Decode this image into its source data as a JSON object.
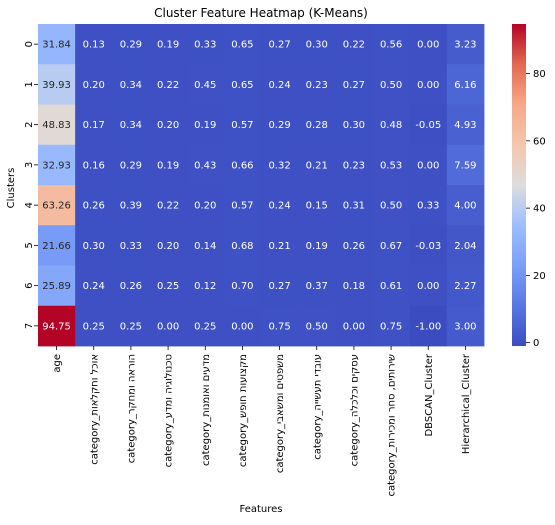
{
  "chart_data": {
    "type": "heatmap",
    "title": "Cluster Feature Heatmap (K-Means)",
    "xlabel": "Features",
    "ylabel": "Clusters",
    "x_categories": [
      "age",
      "category_אוכל וחקלאות",
      "category_הוראה ומחקר",
      "category_טכנולוגיה ומדע",
      "category_מדעים ואומנות",
      "category_מקצועות חופש",
      "category_משפטים ומשאבי",
      "category_עובדי תעשייה",
      "category_עסקים וכלכלה",
      "category_שירותים, סחר ומכירות",
      "DBSCAN_Cluster",
      "Hierarchical_Cluster"
    ],
    "y_categories": [
      "0",
      "1",
      "2",
      "3",
      "4",
      "5",
      "6",
      "7"
    ],
    "values": [
      [
        31.84,
        0.13,
        0.29,
        0.19,
        0.33,
        0.65,
        0.27,
        0.3,
        0.22,
        0.56,
        0.0,
        3.23
      ],
      [
        39.93,
        0.2,
        0.34,
        0.22,
        0.45,
        0.65,
        0.24,
        0.23,
        0.27,
        0.5,
        0.0,
        6.16
      ],
      [
        48.83,
        0.17,
        0.34,
        0.2,
        0.19,
        0.57,
        0.29,
        0.28,
        0.3,
        0.48,
        -0.05,
        4.93
      ],
      [
        32.93,
        0.16,
        0.29,
        0.19,
        0.43,
        0.66,
        0.32,
        0.21,
        0.23,
        0.53,
        0.0,
        7.59
      ],
      [
        63.26,
        0.26,
        0.39,
        0.22,
        0.2,
        0.57,
        0.24,
        0.15,
        0.31,
        0.5,
        0.33,
        4.0
      ],
      [
        21.66,
        0.3,
        0.33,
        0.2,
        0.14,
        0.68,
        0.21,
        0.19,
        0.26,
        0.67,
        -0.03,
        2.04
      ],
      [
        25.89,
        0.24,
        0.26,
        0.25,
        0.12,
        0.7,
        0.27,
        0.37,
        0.18,
        0.61,
        0.0,
        2.27
      ],
      [
        94.75,
        0.25,
        0.25,
        0.0,
        0.25,
        0.0,
        0.75,
        0.5,
        0.0,
        0.75,
        -1.0,
        3.0
      ]
    ],
    "value_labels": [
      [
        "31.84",
        "0.13",
        "0.29",
        "0.19",
        "0.33",
        "0.65",
        "0.27",
        "0.30",
        "0.22",
        "0.56",
        "0.00",
        "3.23"
      ],
      [
        "39.93",
        "0.20",
        "0.34",
        "0.22",
        "0.45",
        "0.65",
        "0.24",
        "0.23",
        "0.27",
        "0.50",
        "0.00",
        "6.16"
      ],
      [
        "48.83",
        "0.17",
        "0.34",
        "0.20",
        "0.19",
        "0.57",
        "0.29",
        "0.28",
        "0.30",
        "0.48",
        "-0.05",
        "4.93"
      ],
      [
        "32.93",
        "0.16",
        "0.29",
        "0.19",
        "0.43",
        "0.66",
        "0.32",
        "0.21",
        "0.23",
        "0.53",
        "0.00",
        "7.59"
      ],
      [
        "63.26",
        "0.26",
        "0.39",
        "0.22",
        "0.20",
        "0.57",
        "0.24",
        "0.15",
        "0.31",
        "0.50",
        "0.33",
        "4.00"
      ],
      [
        "21.66",
        "0.30",
        "0.33",
        "0.20",
        "0.14",
        "0.68",
        "0.21",
        "0.19",
        "0.26",
        "0.67",
        "-0.03",
        "2.04"
      ],
      [
        "25.89",
        "0.24",
        "0.26",
        "0.25",
        "0.12",
        "0.70",
        "0.27",
        "0.37",
        "0.18",
        "0.61",
        "0.00",
        "2.27"
      ],
      [
        "94.75",
        "0.25",
        "0.25",
        "0.00",
        "0.25",
        "0.00",
        "0.75",
        "0.50",
        "0.00",
        "0.75",
        "-1.00",
        "3.00"
      ]
    ],
    "colormap": "coolwarm",
    "color_range": [
      -1.0,
      94.75
    ],
    "colorbar_ticks": [
      0,
      20,
      40,
      60,
      80
    ],
    "colorbar_tick_labels": [
      "0",
      "20",
      "40",
      "60",
      "80"
    ],
    "colors": {
      "low": "#3b4cc0",
      "mid": "#dddddd",
      "high": "#b40426"
    }
  }
}
